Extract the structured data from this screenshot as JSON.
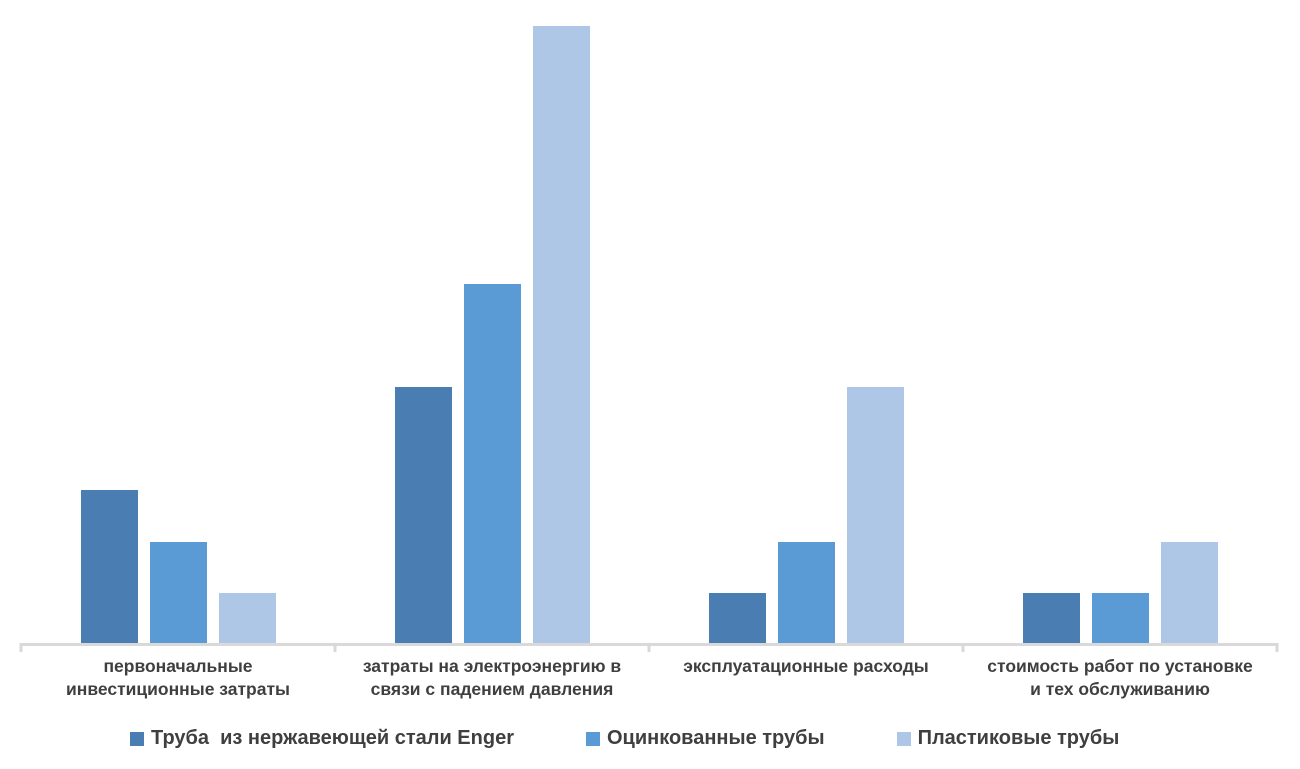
{
  "colors": {
    "series1": "#4A7EB2",
    "series2": "#5B9BD5",
    "series3": "#AEC7E6",
    "axis": "#D9D9D9",
    "label_text": "#3F3F3F",
    "background": "#FFFFFF"
  },
  "legend": {
    "items": [
      {
        "label": "Труба  из нержавеющей стали Enger",
        "color": "#4A7EB2"
      },
      {
        "label": "Оцинкованные трубы",
        "color": "#5B9BD5"
      },
      {
        "label": "Пластиковые трубы",
        "color": "#AEC7E6"
      }
    ]
  },
  "chart_data": {
    "type": "bar",
    "title": "",
    "categories": [
      "первоначальные\nинвестиционные затраты",
      "затраты на электроэнергию в\nсвязи с падением давления",
      "эксплуатационные расходы",
      "стоимость работ по установке\nи тех обслуживанию"
    ],
    "series": [
      {
        "name": "Труба  из нержавеющей стали Enger",
        "color": "#4A7EB2",
        "values": [
          3,
          5,
          1,
          1
        ]
      },
      {
        "name": "Оцинкованные трубы",
        "color": "#5B9BD5",
        "values": [
          2,
          7,
          2,
          1
        ]
      },
      {
        "name": "Пластиковые трубы",
        "color": "#AEC7E6",
        "values": [
          1,
          12,
          5,
          2
        ]
      }
    ],
    "xlabel": "",
    "ylabel": "",
    "ylim": [
      0,
      12
    ],
    "value_units": "relative cost (y-axis not labeled in image)",
    "grid": false,
    "y_axis_visible": false,
    "legend_position": "bottom"
  }
}
